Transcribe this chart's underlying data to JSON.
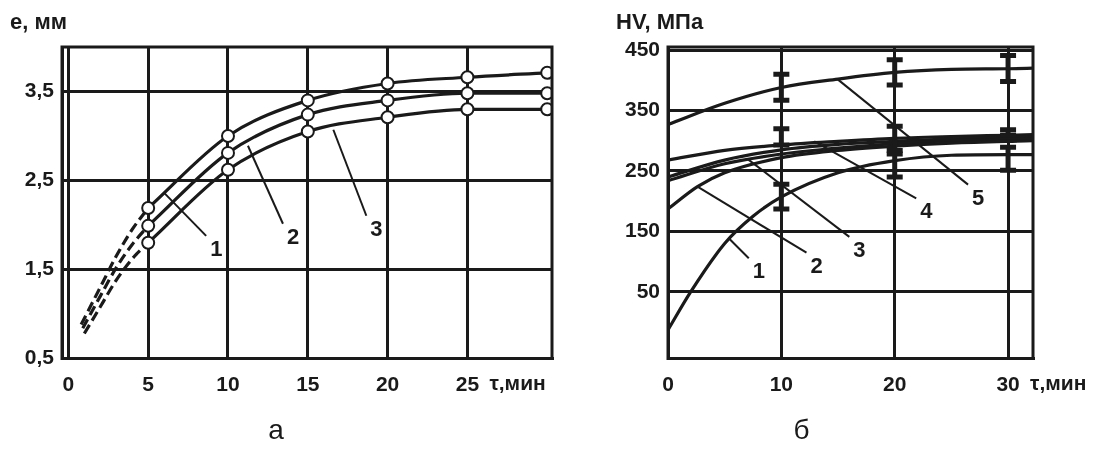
{
  "chart_data": [
    {
      "type": "line",
      "title": "а",
      "xlabel": "τ,мин",
      "ylabel": "e, мм",
      "xlim": [
        -0.4,
        30.3
      ],
      "xticks": [
        0,
        5,
        10,
        15,
        20,
        25
      ],
      "ylim": [
        0.5,
        4.0
      ],
      "yticks": [
        {
          "value": 0.5,
          "label": "0,5"
        },
        {
          "value": 1.5,
          "label": "1,5"
        },
        {
          "value": 2.5,
          "label": "2,5"
        },
        {
          "value": 3.5,
          "label": "3,5"
        }
      ],
      "grid": true,
      "series": [
        {
          "color": "#1a1a1a",
          "marker": "circle",
          "line_style": "solid",
          "x": [
            5,
            10,
            15,
            20,
            25,
            30
          ],
          "values": [
            2.19,
            3.0,
            3.4,
            3.59,
            3.66,
            3.71
          ]
        },
        {
          "color": "#1a1a1a",
          "marker": "circle",
          "line_style": "solid",
          "x": [
            5,
            10,
            15,
            20,
            25,
            30
          ],
          "values": [
            1.99,
            2.81,
            3.24,
            3.4,
            3.48,
            3.48
          ]
        },
        {
          "color": "#1a1a1a",
          "marker": "circle",
          "line_style": "solid",
          "x": [
            5,
            10,
            15,
            20,
            25,
            30
          ],
          "values": [
            1.8,
            2.62,
            3.05,
            3.21,
            3.3,
            3.3
          ]
        },
        {
          "color": "#1a1a1a",
          "marker": "none",
          "line_style": "dashed",
          "x": [
            0.8,
            2,
            3,
            4,
            5
          ],
          "values": [
            0.88,
            1.3,
            1.65,
            1.95,
            2.19
          ]
        },
        {
          "color": "#1a1a1a",
          "marker": "none",
          "line_style": "dashed",
          "x": [
            0.9,
            2,
            3,
            4,
            5
          ],
          "values": [
            0.84,
            1.2,
            1.52,
            1.78,
            1.99
          ]
        },
        {
          "color": "#1a1a1a",
          "marker": "none",
          "line_style": "dashed",
          "x": [
            1,
            2,
            3,
            4,
            5
          ],
          "values": [
            0.78,
            1.08,
            1.38,
            1.62,
            1.8
          ]
        }
      ],
      "annotations": [
        {
          "text": "1",
          "x": 6.0,
          "y": 2.36
        },
        {
          "text": "2",
          "x": 11.25,
          "y": 2.89
        },
        {
          "text": "3",
          "x": 16.6,
          "y": 3.07
        }
      ]
    },
    {
      "type": "line",
      "title": "б",
      "xlabel": "τ,мин",
      "ylabel": "HV, МПа",
      "xlim": [
        0,
        32.2
      ],
      "xticks": [
        0,
        10,
        20,
        30
      ],
      "ylim": [
        -60,
        455
      ],
      "yticks": [
        50,
        150,
        250,
        350,
        450
      ],
      "grid": true,
      "series": [
        {
          "color": "#1a1a1a",
          "marker": "none",
          "line_style": "solid",
          "x": [
            0,
            2,
            5,
            7.5,
            10,
            15,
            20,
            25,
            30,
            32.2
          ],
          "values": [
            -13,
            50,
            130,
            175,
            207,
            247,
            267,
            276,
            277,
            277
          ],
          "errors": [
            null,
            null,
            null,
            null,
            [
              187,
              228
            ],
            null,
            [
              240,
              278
            ],
            null,
            [
              251,
              289
            ],
            null
          ]
        },
        {
          "color": "#1a1a1a",
          "marker": "none",
          "line_style": "solid",
          "x": [
            0,
            2.6,
            5,
            10,
            15,
            20,
            25,
            32.2
          ],
          "values": [
            187,
            224,
            247,
            272,
            284,
            291,
            296,
            300
          ]
        },
        {
          "color": "#1a1a1a",
          "marker": "none",
          "line_style": "solid",
          "x": [
            0,
            5,
            10,
            15,
            20,
            25,
            32.2
          ],
          "values": [
            234,
            262,
            278,
            288,
            295,
            300,
            303
          ]
        },
        {
          "color": "#1a1a1a",
          "marker": "none",
          "line_style": "solid",
          "x": [
            0,
            5,
            10,
            15,
            20,
            25,
            32.2
          ],
          "values": [
            240,
            268,
            285,
            294,
            299,
            303,
            306
          ]
        },
        {
          "color": "#1a1a1a",
          "marker": "none",
          "line_style": "solid",
          "x": [
            0,
            5,
            10,
            15,
            20,
            25,
            30,
            32.2
          ],
          "values": [
            268,
            284,
            293,
            299,
            304,
            307,
            309,
            310
          ],
          "errors": [
            null,
            null,
            [
              293,
              320
            ],
            null,
            [
              284,
              324
            ],
            null,
            [
              309,
              318
            ],
            null
          ]
        },
        {
          "color": "#1a1a1a",
          "marker": "none",
          "line_style": "solid",
          "x": [
            0,
            5,
            10,
            15,
            20,
            25,
            30,
            32.2
          ],
          "values": [
            327,
            362,
            388,
            402,
            413,
            418,
            419,
            420
          ],
          "errors": [
            null,
            null,
            [
              367,
              410
            ],
            null,
            [
              392,
              434
            ],
            null,
            [
              398,
              441
            ],
            null
          ]
        }
      ],
      "annotations": [
        {
          "text": "1",
          "x": 5.45,
          "y": 137
        },
        {
          "text": "2",
          "x": 2.6,
          "y": 224
        },
        {
          "text": "3",
          "x": 7.0,
          "y": 270
        },
        {
          "text": "4",
          "x": 12.9,
          "y": 299
        },
        {
          "text": "5",
          "x": 15.0,
          "y": 401
        }
      ]
    }
  ]
}
